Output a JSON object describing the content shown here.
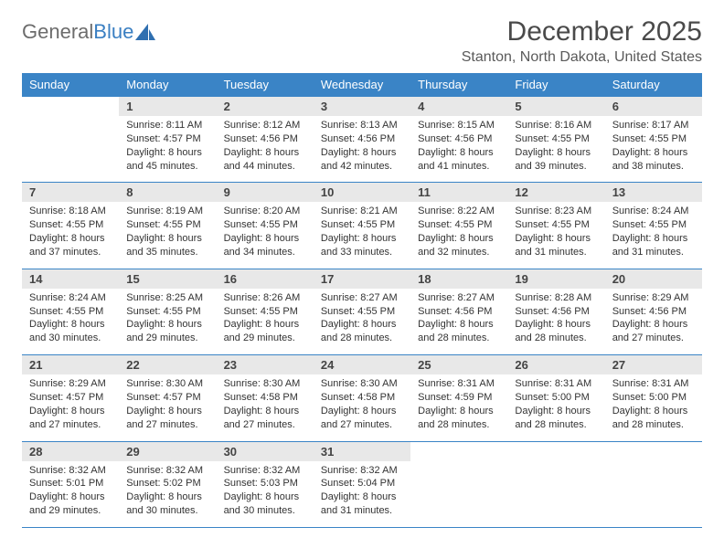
{
  "brand": {
    "part1": "General",
    "part2": "Blue"
  },
  "title": "December 2025",
  "location": "Stanton, North Dakota, United States",
  "colors": {
    "header_bg": "#3a84c6",
    "header_text": "#ffffff",
    "daynum_bg": "#e8e8e8",
    "rule": "#3a84c6",
    "title_color": "#4a4a4a",
    "brand_gray": "#6c6c6c",
    "brand_blue": "#3a7fc2"
  },
  "weekdays": [
    "Sunday",
    "Monday",
    "Tuesday",
    "Wednesday",
    "Thursday",
    "Friday",
    "Saturday"
  ],
  "weeks": [
    {
      "nums": [
        "",
        "1",
        "2",
        "3",
        "4",
        "5",
        "6"
      ],
      "details": [
        "",
        "Sunrise: 8:11 AM\nSunset: 4:57 PM\nDaylight: 8 hours and 45 minutes.",
        "Sunrise: 8:12 AM\nSunset: 4:56 PM\nDaylight: 8 hours and 44 minutes.",
        "Sunrise: 8:13 AM\nSunset: 4:56 PM\nDaylight: 8 hours and 42 minutes.",
        "Sunrise: 8:15 AM\nSunset: 4:56 PM\nDaylight: 8 hours and 41 minutes.",
        "Sunrise: 8:16 AM\nSunset: 4:55 PM\nDaylight: 8 hours and 39 minutes.",
        "Sunrise: 8:17 AM\nSunset: 4:55 PM\nDaylight: 8 hours and 38 minutes."
      ]
    },
    {
      "nums": [
        "7",
        "8",
        "9",
        "10",
        "11",
        "12",
        "13"
      ],
      "details": [
        "Sunrise: 8:18 AM\nSunset: 4:55 PM\nDaylight: 8 hours and 37 minutes.",
        "Sunrise: 8:19 AM\nSunset: 4:55 PM\nDaylight: 8 hours and 35 minutes.",
        "Sunrise: 8:20 AM\nSunset: 4:55 PM\nDaylight: 8 hours and 34 minutes.",
        "Sunrise: 8:21 AM\nSunset: 4:55 PM\nDaylight: 8 hours and 33 minutes.",
        "Sunrise: 8:22 AM\nSunset: 4:55 PM\nDaylight: 8 hours and 32 minutes.",
        "Sunrise: 8:23 AM\nSunset: 4:55 PM\nDaylight: 8 hours and 31 minutes.",
        "Sunrise: 8:24 AM\nSunset: 4:55 PM\nDaylight: 8 hours and 31 minutes."
      ]
    },
    {
      "nums": [
        "14",
        "15",
        "16",
        "17",
        "18",
        "19",
        "20"
      ],
      "details": [
        "Sunrise: 8:24 AM\nSunset: 4:55 PM\nDaylight: 8 hours and 30 minutes.",
        "Sunrise: 8:25 AM\nSunset: 4:55 PM\nDaylight: 8 hours and 29 minutes.",
        "Sunrise: 8:26 AM\nSunset: 4:55 PM\nDaylight: 8 hours and 29 minutes.",
        "Sunrise: 8:27 AM\nSunset: 4:55 PM\nDaylight: 8 hours and 28 minutes.",
        "Sunrise: 8:27 AM\nSunset: 4:56 PM\nDaylight: 8 hours and 28 minutes.",
        "Sunrise: 8:28 AM\nSunset: 4:56 PM\nDaylight: 8 hours and 28 minutes.",
        "Sunrise: 8:29 AM\nSunset: 4:56 PM\nDaylight: 8 hours and 27 minutes."
      ]
    },
    {
      "nums": [
        "21",
        "22",
        "23",
        "24",
        "25",
        "26",
        "27"
      ],
      "details": [
        "Sunrise: 8:29 AM\nSunset: 4:57 PM\nDaylight: 8 hours and 27 minutes.",
        "Sunrise: 8:30 AM\nSunset: 4:57 PM\nDaylight: 8 hours and 27 minutes.",
        "Sunrise: 8:30 AM\nSunset: 4:58 PM\nDaylight: 8 hours and 27 minutes.",
        "Sunrise: 8:30 AM\nSunset: 4:58 PM\nDaylight: 8 hours and 27 minutes.",
        "Sunrise: 8:31 AM\nSunset: 4:59 PM\nDaylight: 8 hours and 28 minutes.",
        "Sunrise: 8:31 AM\nSunset: 5:00 PM\nDaylight: 8 hours and 28 minutes.",
        "Sunrise: 8:31 AM\nSunset: 5:00 PM\nDaylight: 8 hours and 28 minutes."
      ]
    },
    {
      "nums": [
        "28",
        "29",
        "30",
        "31",
        "",
        "",
        ""
      ],
      "details": [
        "Sunrise: 8:32 AM\nSunset: 5:01 PM\nDaylight: 8 hours and 29 minutes.",
        "Sunrise: 8:32 AM\nSunset: 5:02 PM\nDaylight: 8 hours and 30 minutes.",
        "Sunrise: 8:32 AM\nSunset: 5:03 PM\nDaylight: 8 hours and 30 minutes.",
        "Sunrise: 8:32 AM\nSunset: 5:04 PM\nDaylight: 8 hours and 31 minutes.",
        "",
        "",
        ""
      ]
    }
  ]
}
